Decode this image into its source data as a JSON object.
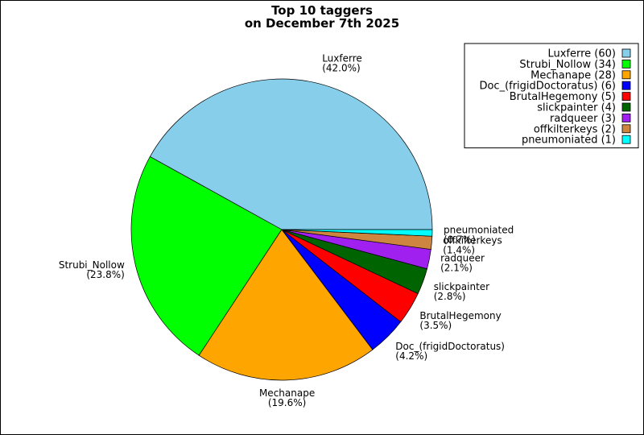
{
  "chart_data": {
    "type": "pie",
    "title_lines": [
      "Top 10 taggers",
      "on December 7th 2025"
    ],
    "slices": [
      {
        "label": "Luxferre",
        "value": 60,
        "percent": "(42.0%)",
        "legend": "Luxferre (60)",
        "color": "#87ceeb"
      },
      {
        "label": "Strubi_Nollow",
        "value": 34,
        "percent": "(23.8%)",
        "legend": "Strubi_Nollow (34)",
        "color": "#00ff00"
      },
      {
        "label": "Mechanape",
        "value": 28,
        "percent": "(19.6%)",
        "legend": "Mechanape (28)",
        "color": "#ffa500"
      },
      {
        "label": "Doc_(frigidDoctoratus)",
        "value": 6,
        "percent": "(4.2%)",
        "legend": "Doc_(frigidDoctoratus) (6)",
        "color": "#0000ff"
      },
      {
        "label": "BrutalHegemony",
        "value": 5,
        "percent": "(3.5%)",
        "legend": "BrutalHegemony (5)",
        "color": "#ff0000"
      },
      {
        "label": "slickpainter",
        "value": 4,
        "percent": "(2.8%)",
        "legend": "slickpainter (4)",
        "color": "#006400"
      },
      {
        "label": "radqueer",
        "value": 3,
        "percent": "(2.1%)",
        "legend": "radqueer (3)",
        "color": "#a020f0"
      },
      {
        "label": "offkilterkeys",
        "value": 2,
        "percent": "(1.4%)",
        "legend": "offkilterkeys (2)",
        "color": "#cd853f"
      },
      {
        "label": "pneumoniated",
        "value": 1,
        "percent": "(0.7%)",
        "legend": "pneumoniated (1)",
        "color": "#00ffff"
      }
    ],
    "legend_position": "top-right"
  }
}
